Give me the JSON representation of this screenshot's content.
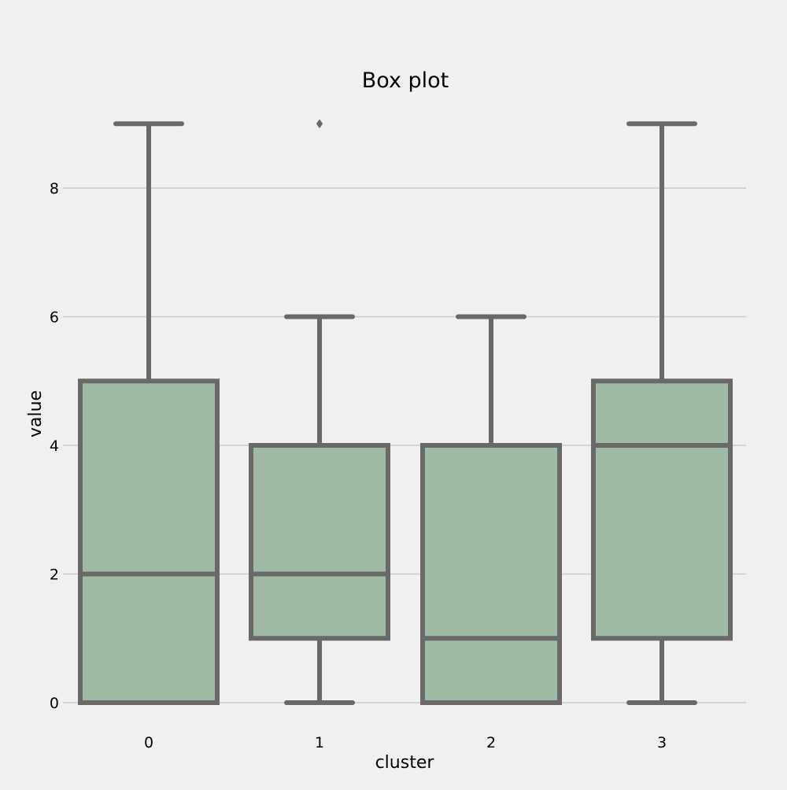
{
  "chart_data": {
    "type": "box",
    "title": "Box plot",
    "xlabel": "cluster",
    "ylabel": "value",
    "categories": [
      "0",
      "1",
      "2",
      "3"
    ],
    "ylim": [
      -0.4,
      10
    ],
    "yticks": [
      0,
      2,
      4,
      6,
      8
    ],
    "grid": true,
    "boxes": [
      {
        "category": "0",
        "whisker_low": 0,
        "q1": 0,
        "median": 2,
        "q3": 5,
        "whisker_high": 9,
        "outliers": []
      },
      {
        "category": "1",
        "whisker_low": 0,
        "q1": 1,
        "median": 2,
        "q3": 4,
        "whisker_high": 6,
        "outliers": [
          9
        ]
      },
      {
        "category": "2",
        "whisker_low": 0,
        "q1": 0,
        "median": 1,
        "q3": 4,
        "whisker_high": 6,
        "outliers": []
      },
      {
        "category": "3",
        "whisker_low": 0,
        "q1": 1,
        "median": 4,
        "q3": 5,
        "whisker_high": 9,
        "outliers": []
      }
    ]
  },
  "colors": {
    "background": "#f0f0f0",
    "box_fill": "#a0bba5",
    "line": "#696969",
    "grid": "#cbcbcb"
  }
}
